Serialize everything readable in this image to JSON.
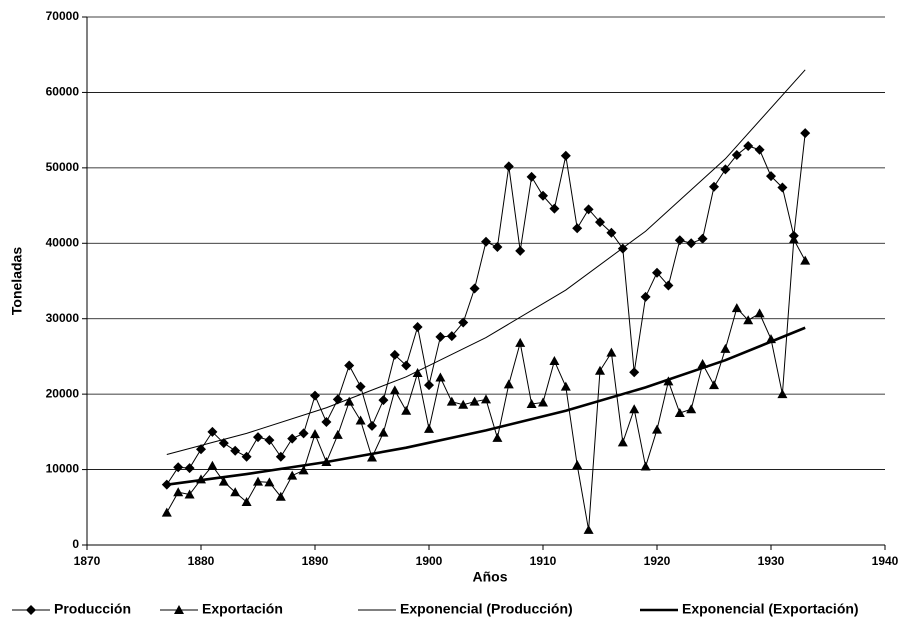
{
  "chart_data": {
    "type": "line",
    "xlabel": "Años",
    "ylabel": "Toneladas",
    "x": [
      1877,
      1878,
      1879,
      1880,
      1881,
      1882,
      1883,
      1884,
      1885,
      1886,
      1887,
      1888,
      1889,
      1890,
      1891,
      1892,
      1893,
      1894,
      1895,
      1896,
      1897,
      1898,
      1899,
      1900,
      1901,
      1902,
      1903,
      1904,
      1905,
      1906,
      1907,
      1908,
      1909,
      1910,
      1911,
      1912,
      1913,
      1914,
      1915,
      1916,
      1917,
      1918,
      1919,
      1920,
      1921,
      1922,
      1923,
      1924,
      1925,
      1926,
      1927,
      1928,
      1929,
      1930,
      1931,
      1932,
      1933
    ],
    "series": [
      {
        "name": "Producción",
        "color": "#000000",
        "marker": "diamond",
        "line_width": 1,
        "values": [
          8000,
          10300,
          10200,
          12700,
          15000,
          13500,
          12500,
          11700,
          14300,
          13900,
          11700,
          14100,
          14800,
          19800,
          16300,
          19300,
          23800,
          21000,
          15800,
          19200,
          25200,
          23800,
          28900,
          21200,
          27600,
          27700,
          29500,
          34000,
          40200,
          39500,
          50200,
          39000,
          48800,
          46300,
          44600,
          51600,
          42000,
          44500,
          42800,
          41400,
          39300,
          22900,
          32900,
          36100,
          34400,
          40400,
          40000,
          40600,
          47500,
          49800,
          51700,
          52900,
          52400,
          48900,
          47400,
          41000,
          54600
        ]
      },
      {
        "name": "Exportación",
        "color": "#000000",
        "marker": "triangle",
        "line_width": 1,
        "values": [
          4300,
          7000,
          6700,
          8700,
          10500,
          8400,
          7000,
          5700,
          8400,
          8300,
          6400,
          9200,
          9900,
          14700,
          11000,
          14600,
          19000,
          16500,
          11600,
          14900,
          20500,
          17800,
          22800,
          15400,
          22200,
          19000,
          18600,
          19000,
          19300,
          14200,
          21300,
          26800,
          18700,
          18900,
          24400,
          21000,
          10600,
          2000,
          23100,
          25500,
          13600,
          18000,
          10400,
          15300,
          21700,
          17500,
          18000,
          24000,
          21200,
          26000,
          31400,
          29800,
          30700,
          27300,
          20000,
          40500,
          37700
        ]
      },
      {
        "name": "Exponencial (Producción)",
        "color": "#000000",
        "line_width": 1,
        "x": [
          1877,
          1884,
          1891,
          1898,
          1905,
          1912,
          1919,
          1926,
          1933
        ],
        "values": [
          12000,
          14800,
          18200,
          22300,
          27500,
          33800,
          41600,
          51200,
          63000
        ]
      },
      {
        "name": "Exponencial (Exportación)",
        "color": "#000000",
        "line_width": 2.6,
        "x": [
          1877,
          1884,
          1891,
          1898,
          1905,
          1912,
          1919,
          1926,
          1933
        ],
        "values": [
          8000,
          9400,
          11000,
          12900,
          15200,
          17800,
          20900,
          24500,
          28800
        ]
      }
    ],
    "xlim": [
      1870,
      1940
    ],
    "xticks": [
      1870,
      1880,
      1890,
      1900,
      1910,
      1920,
      1930,
      1940
    ],
    "ylim": [
      0,
      70000
    ],
    "yticks": [
      0,
      10000,
      20000,
      30000,
      40000,
      50000,
      60000,
      70000
    ],
    "grid": true,
    "legend": "bottom"
  }
}
